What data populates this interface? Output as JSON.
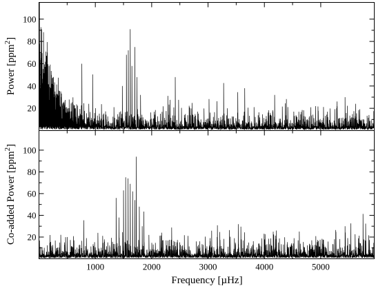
{
  "chart_data": [
    {
      "type": "line",
      "panel": "top",
      "ylabel": "Power [ppm",
      "ylabel_sup": "2",
      "ylabel_end": "]",
      "xlim": [
        0,
        5950
      ],
      "ylim": [
        0,
        115
      ],
      "xticks": [
        1000,
        2000,
        3000,
        4000,
        5000
      ],
      "yticks": [
        20,
        40,
        60,
        80,
        100
      ],
      "ytick_labels": [
        "20",
        "40",
        "60",
        "80",
        "100"
      ],
      "noise_level": 10,
      "low_freq_excess": {
        "amplitude": 85,
        "decay": 280
      },
      "peaks": [
        {
          "x": 1480,
          "y": 40
        },
        {
          "x": 1550,
          "y": 68
        },
        {
          "x": 1585,
          "y": 72
        },
        {
          "x": 1620,
          "y": 91
        },
        {
          "x": 1650,
          "y": 58
        },
        {
          "x": 1700,
          "y": 75
        },
        {
          "x": 1740,
          "y": 48
        },
        {
          "x": 1800,
          "y": 32
        },
        {
          "x": 760,
          "y": 60
        },
        {
          "x": 2420,
          "y": 48
        },
        {
          "x": 3650,
          "y": 38
        },
        {
          "x": 4180,
          "y": 32
        },
        {
          "x": 5430,
          "y": 30
        }
      ]
    },
    {
      "type": "line",
      "panel": "bottom",
      "ylabel": "Co-added Power [ppm",
      "ylabel_sup": "2",
      "ylabel_end": "]",
      "xlabel": "Frequency [µHz]",
      "xlim": [
        0,
        5950
      ],
      "ylim": [
        0,
        118
      ],
      "xticks": [
        1000,
        2000,
        3000,
        4000,
        5000
      ],
      "xtick_labels": [
        "1000",
        "2000",
        "3000",
        "4000",
        "5000"
      ],
      "yticks": [
        20,
        40,
        60,
        80,
        100
      ],
      "ytick_labels": [
        "20",
        "40",
        "60",
        "80",
        "100"
      ],
      "noise_level": 10,
      "peaks": [
        {
          "x": 1370,
          "y": 56
        },
        {
          "x": 1420,
          "y": 38
        },
        {
          "x": 1500,
          "y": 63
        },
        {
          "x": 1540,
          "y": 75
        },
        {
          "x": 1580,
          "y": 74
        },
        {
          "x": 1620,
          "y": 69
        },
        {
          "x": 1660,
          "y": 62
        },
        {
          "x": 1700,
          "y": 54
        },
        {
          "x": 1725,
          "y": 94
        },
        {
          "x": 1780,
          "y": 48
        },
        {
          "x": 1830,
          "y": 30
        },
        {
          "x": 1950,
          "y": 22
        },
        {
          "x": 5430,
          "y": 30
        }
      ]
    }
  ]
}
